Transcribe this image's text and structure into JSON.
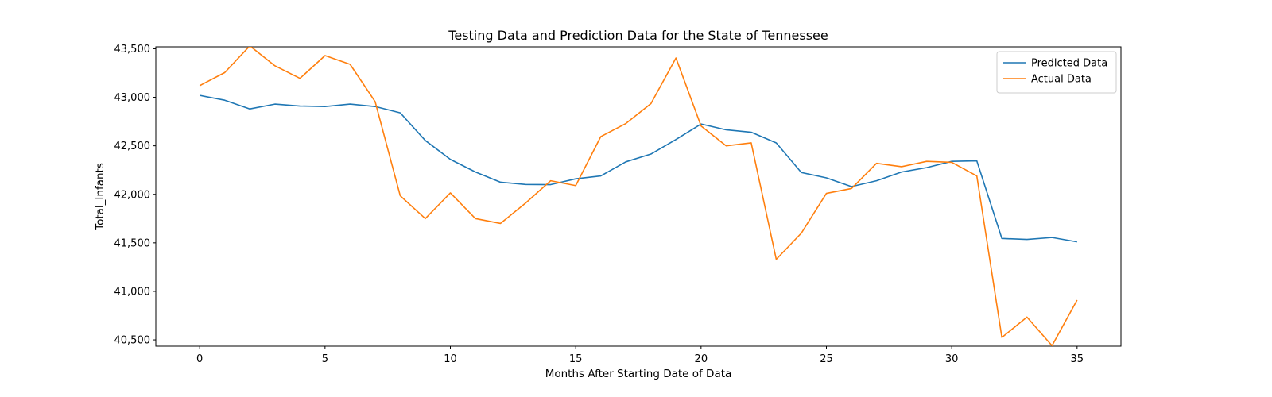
{
  "chart_data": {
    "type": "line",
    "title": "Testing Data and Prediction Data for the State of Tennessee",
    "xlabel": "Months After Starting Date of Data",
    "ylabel": "Total_Infants",
    "xlim": [
      -1.75,
      36.75
    ],
    "ylim": [
      40435,
      43520
    ],
    "xticks": [
      0,
      5,
      10,
      15,
      20,
      25,
      30,
      35
    ],
    "yticks": [
      40500,
      41000,
      41500,
      42000,
      42500,
      43000,
      43500
    ],
    "ytick_labels": [
      "40,500",
      "41,000",
      "41,500",
      "42,000",
      "42,500",
      "43,000",
      "43,500"
    ],
    "grid": false,
    "legend_position": "top-right",
    "x": [
      0,
      1,
      2,
      3,
      4,
      5,
      6,
      7,
      8,
      9,
      10,
      11,
      12,
      13,
      14,
      15,
      16,
      17,
      18,
      19,
      20,
      21,
      22,
      23,
      24,
      25,
      26,
      27,
      28,
      29,
      30,
      31,
      32,
      33,
      34,
      35
    ],
    "series": [
      {
        "name": "Predicted Data",
        "color": "#1f77b4",
        "values": [
          43020,
          42970,
          42880,
          42930,
          42910,
          42905,
          42930,
          42905,
          42840,
          42555,
          42360,
          42230,
          42125,
          42102,
          42100,
          42160,
          42190,
          42335,
          42415,
          42565,
          42725,
          42665,
          42640,
          42530,
          42225,
          42170,
          42080,
          42140,
          42230,
          42275,
          42340,
          42345,
          41545,
          41535,
          41555,
          41510
        ]
      },
      {
        "name": "Actual Data",
        "color": "#ff7f0e",
        "values": [
          43120,
          43255,
          43530,
          43325,
          43195,
          43430,
          43340,
          42955,
          41985,
          41750,
          42015,
          41750,
          41700,
          41910,
          42140,
          42090,
          42595,
          42730,
          42935,
          43405,
          42705,
          42500,
          42530,
          41330,
          41600,
          42010,
          42060,
          42320,
          42285,
          42340,
          42330,
          42190,
          40525,
          40735,
          40440,
          40910
        ]
      }
    ]
  }
}
